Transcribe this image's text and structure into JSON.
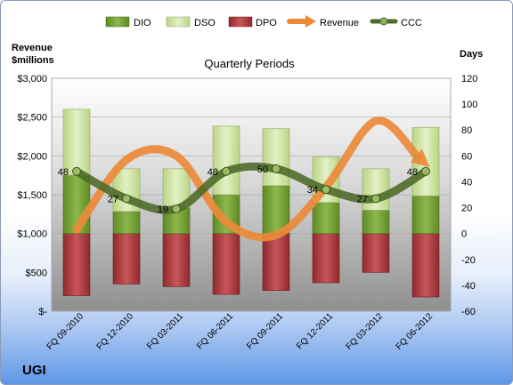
{
  "chart_data": {
    "type": "bar",
    "title": "Quarterly Periods",
    "company": "UGI",
    "categories": [
      "FQ 09-2010",
      "FQ 12-2010",
      "FQ 03-2011",
      "FQ 06-2011",
      "FQ 09-2011",
      "FQ 12-2011",
      "FQ 03-2012",
      "FQ 06-2012"
    ],
    "y_left": {
      "label_line1": "Revenue",
      "label_line2": "$millions",
      "range": [
        0,
        3000
      ],
      "ticks": [
        0,
        500,
        1000,
        1500,
        2000,
        2500,
        3000
      ],
      "tick_labels": [
        "$-",
        "$500",
        "$1,000",
        "$1,500",
        "$2,000",
        "$2,500",
        "$3,000"
      ]
    },
    "y_right": {
      "label": "Days",
      "range": [
        -60,
        120
      ],
      "ticks": [
        -60,
        -40,
        -20,
        0,
        20,
        40,
        60,
        80,
        100,
        120
      ],
      "tick_labels": [
        "-60",
        "-40",
        "-20",
        "0",
        "20",
        "40",
        "60",
        "80",
        "100",
        "120"
      ]
    },
    "series": [
      {
        "name": "DIO",
        "axis": "right",
        "type": "stacked-bar",
        "color": "#7aa33a",
        "values": [
          45,
          17,
          20,
          30,
          37,
          24,
          18,
          29
        ]
      },
      {
        "name": "DSO",
        "axis": "right",
        "type": "stacked-bar",
        "color": "#cfe3a0",
        "values": [
          51,
          33,
          30,
          53,
          44,
          35,
          32,
          53
        ]
      },
      {
        "name": "DPO",
        "axis": "right",
        "type": "stacked-bar",
        "color": "#b03a3f",
        "values": [
          -48,
          -39,
          -41,
          -47,
          -44,
          -38,
          -30,
          -49
        ]
      },
      {
        "name": "Revenue",
        "axis": "left",
        "type": "line",
        "color": "#ec8a3a",
        "values": [
          1050,
          1950,
          2000,
          1150,
          980,
          1600,
          2450,
          1900
        ]
      },
      {
        "name": "CCC",
        "axis": "right",
        "type": "line",
        "color": "#4f6b2a",
        "values": [
          48,
          27,
          19,
          48,
          50,
          34,
          27,
          48
        ]
      }
    ],
    "ccc_labels": [
      "48",
      "27",
      "19",
      "48",
      "50",
      "34",
      "27",
      "48"
    ],
    "grid": true,
    "legend": "top"
  }
}
